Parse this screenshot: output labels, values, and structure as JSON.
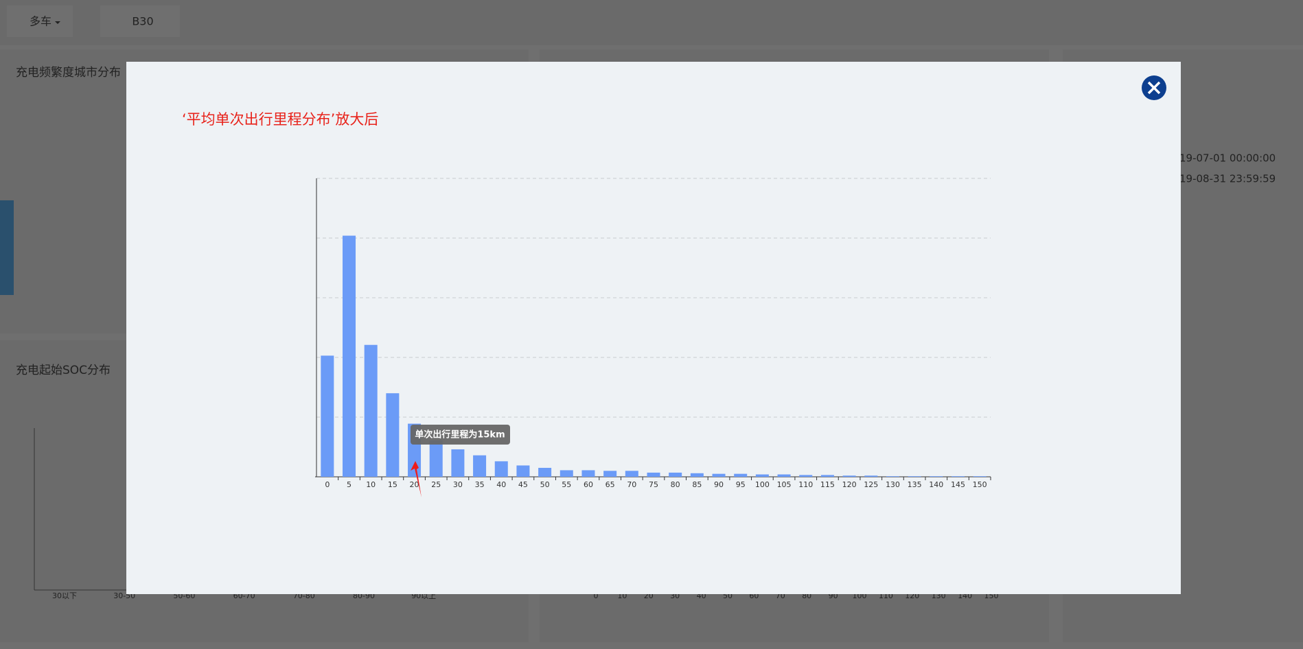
{
  "top_bar": {
    "vehicle_mode": "多车",
    "model": "B30"
  },
  "panels": {
    "city_title": "充电频繁度城市分布",
    "soc_title": "充电起始SOC分布",
    "start_time": "19-07-01 00:00:00",
    "end_time": "19-08-31 23:59:59",
    "soc_categories": [
      "30以下",
      "30-50",
      "50-60",
      "60-70",
      "70-80",
      "80-90",
      "90以上"
    ],
    "right_axis_ticks": [
      0,
      10,
      20,
      30,
      40,
      50,
      60,
      70,
      80,
      90,
      100,
      110,
      120,
      130,
      140,
      150
    ]
  },
  "modal": {
    "title": "‘平均单次出行里程分布’放大后"
  },
  "chart_data": {
    "type": "bar",
    "categories": [
      0,
      5,
      10,
      15,
      20,
      25,
      30,
      35,
      40,
      45,
      50,
      55,
      60,
      65,
      70,
      75,
      80,
      85,
      90,
      95,
      100,
      105,
      110,
      115,
      120,
      125,
      130,
      135,
      140,
      145,
      150
    ],
    "values": [
      2.03,
      4.04,
      2.21,
      1.4,
      0.89,
      0.61,
      0.46,
      0.36,
      0.26,
      0.19,
      0.15,
      0.11,
      0.11,
      0.1,
      0.1,
      0.07,
      0.07,
      0.06,
      0.05,
      0.05,
      0.04,
      0.04,
      0.03,
      0.03,
      0.02,
      0.02,
      0.01,
      0.01,
      0.01,
      0.01,
      0.01
    ],
    "color": "#6b9bf7",
    "ylim": [
      0,
      5
    ],
    "yticks": [
      0,
      1,
      2,
      3,
      4,
      5
    ],
    "grid": true,
    "annotation": "单次出行里程为15km"
  }
}
